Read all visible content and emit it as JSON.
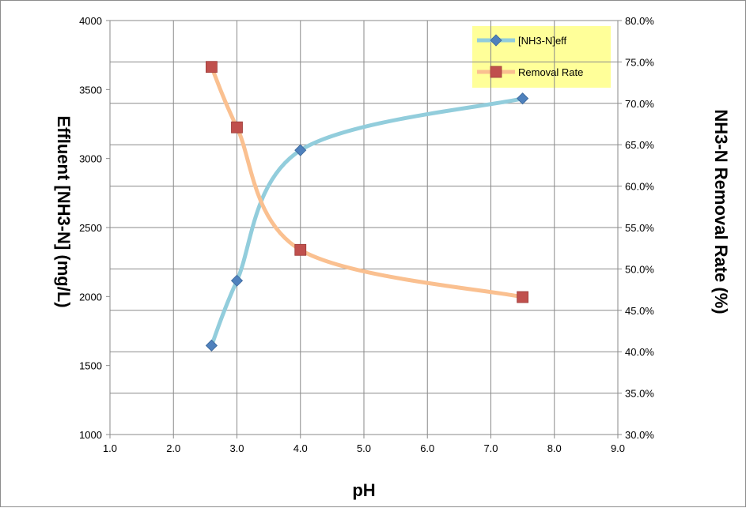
{
  "chart_data": {
    "type": "line",
    "xlabel": "pH",
    "ylabel_left": "Effluent [NH3-N] (mg/L)",
    "ylabel_right": "NH3-N Removal Rate (%)",
    "x_ticks": [
      "1.0",
      "2.0",
      "3.0",
      "4.0",
      "5.0",
      "6.0",
      "7.0",
      "8.0",
      "9.0"
    ],
    "y_left_ticks": [
      "1000",
      "1500",
      "2000",
      "2500",
      "3000",
      "3500",
      "4000"
    ],
    "y_right_ticks": [
      "30.0%",
      "35.0%",
      "40.0%",
      "45.0%",
      "50.0%",
      "55.0%",
      "60.0%",
      "65.0%",
      "70.0%",
      "75.0%",
      "80.0%"
    ],
    "xlim": [
      1,
      9
    ],
    "ylim_left": [
      1000,
      4000
    ],
    "ylim_right": [
      30,
      80
    ],
    "grid": true,
    "legend": "top-right",
    "series": [
      {
        "name": "[NH3-N]eff",
        "axis": "left",
        "color": "#92cddc",
        "marker": "diamond",
        "marker_color": "#4f81bd",
        "x": [
          2.6,
          3.0,
          4.0,
          7.5
        ],
        "y": [
          1645,
          2115,
          3060,
          3435
        ]
      },
      {
        "name": "Removal Rate",
        "axis": "right",
        "color": "#fac090",
        "marker": "square",
        "marker_color": "#c0504d",
        "x": [
          2.6,
          3.0,
          4.0,
          7.5
        ],
        "y": [
          74.4,
          67.1,
          52.3,
          46.6
        ]
      }
    ]
  }
}
